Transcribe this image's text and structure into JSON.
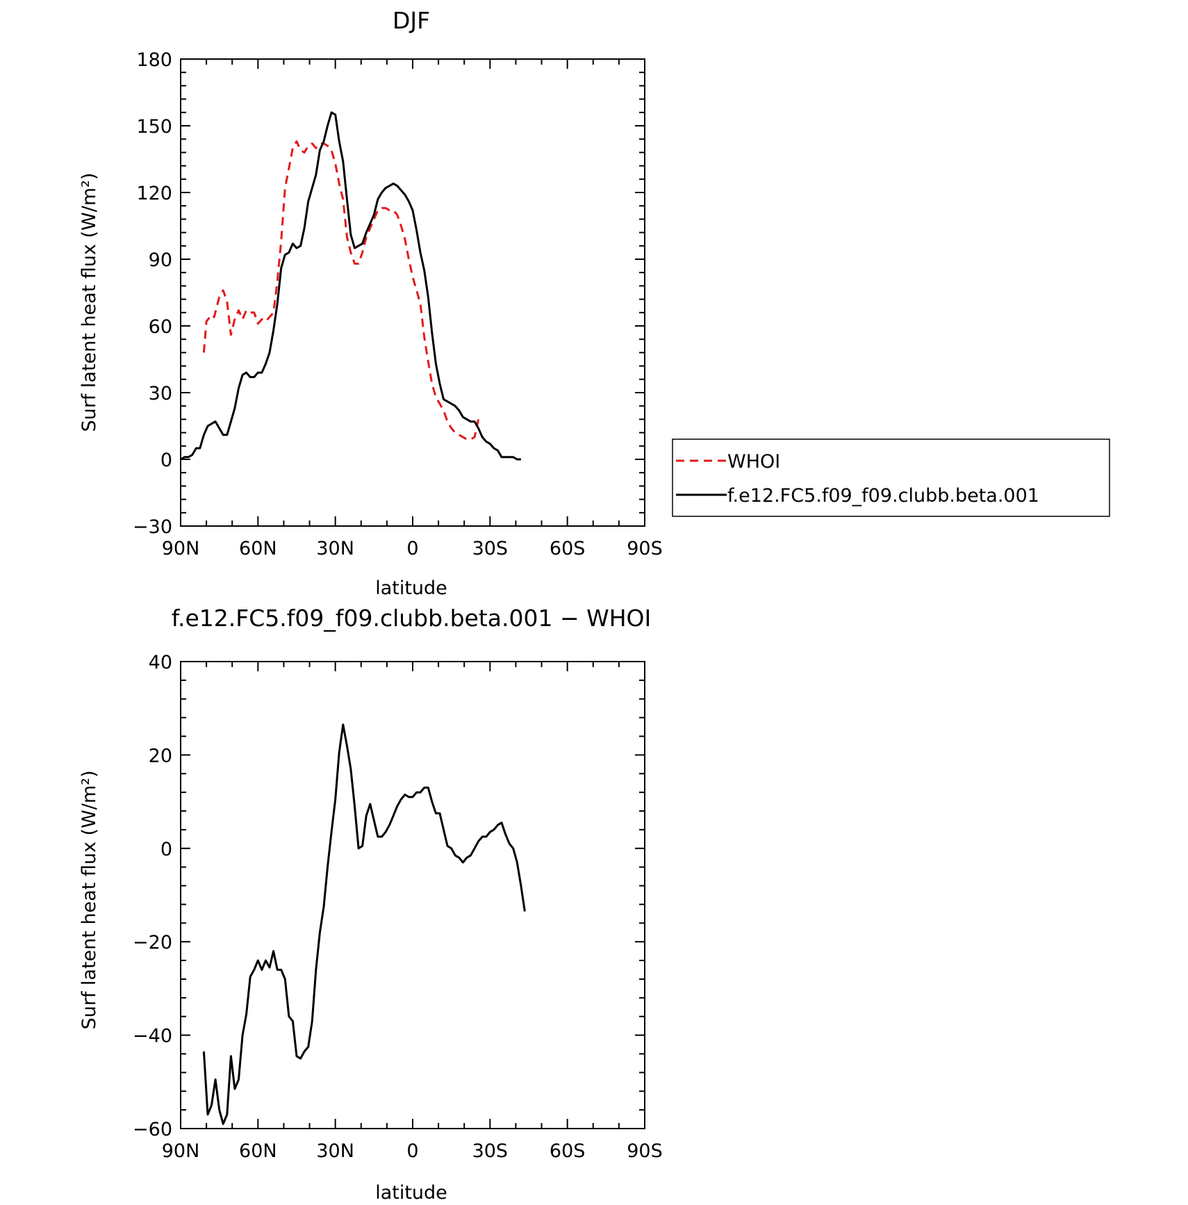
{
  "chart_data": [
    {
      "type": "line",
      "title": "DJF",
      "xlabel": "latitude",
      "ylabel": "Surf latent heat flux (W/m²)",
      "xlim": [
        -90,
        90
      ],
      "ylim": [
        -30,
        180
      ],
      "x_note": "positive = N, negative = S (displayed from 90N on left to 90S on right)",
      "xticks": [
        {
          "value": 90,
          "label": "90N"
        },
        {
          "value": 60,
          "label": "60N"
        },
        {
          "value": 30,
          "label": "30N"
        },
        {
          "value": 0,
          "label": "0"
        },
        {
          "value": -30,
          "label": "30S"
        },
        {
          "value": -60,
          "label": "60S"
        },
        {
          "value": -90,
          "label": "90S"
        }
      ],
      "yticks": [
        180,
        150,
        120,
        90,
        60,
        30,
        0,
        -30
      ],
      "ytick_labels": [
        "180",
        "150",
        "120",
        "90",
        "60",
        "30",
        "0",
        "−30"
      ],
      "grid": false,
      "legend_position": "right",
      "series": [
        {
          "name": "WHOI",
          "color": "#e41a1c",
          "dash": "dashed",
          "points": [
            [
              81,
              48
            ],
            [
              80,
              62
            ],
            [
              78,
              65
            ],
            [
              77,
              64
            ],
            [
              75,
              73
            ],
            [
              73.5,
              76
            ],
            [
              72,
              71
            ],
            [
              70.5,
              56
            ],
            [
              69,
              63
            ],
            [
              67.5,
              67
            ],
            [
              66,
              63
            ],
            [
              64.5,
              67
            ],
            [
              63,
              66
            ],
            [
              61.5,
              66
            ],
            [
              60,
              61
            ],
            [
              58.5,
              63
            ],
            [
              57,
              62
            ],
            [
              55.5,
              64
            ],
            [
              54,
              66
            ],
            [
              52.5,
              80
            ],
            [
              51,
              98
            ],
            [
              49.5,
              122
            ],
            [
              48,
              131
            ],
            [
              46.5,
              140
            ],
            [
              45,
              143
            ],
            [
              43.5,
              139
            ],
            [
              42,
              138
            ],
            [
              40.5,
              141
            ],
            [
              39,
              142
            ],
            [
              37.5,
              140
            ],
            [
              36,
              142
            ],
            [
              34.5,
              142
            ],
            [
              33,
              141
            ],
            [
              31.5,
              139
            ],
            [
              30,
              133
            ],
            [
              28.5,
              124
            ],
            [
              27,
              117
            ],
            [
              25.5,
              100
            ],
            [
              24,
              93
            ],
            [
              22.5,
              88
            ],
            [
              21,
              88
            ],
            [
              19.5,
              93
            ],
            [
              18,
              100
            ],
            [
              16.5,
              104
            ],
            [
              15,
              108
            ],
            [
              13.5,
              112
            ],
            [
              12,
              113
            ],
            [
              10.5,
              113
            ],
            [
              9,
              112
            ],
            [
              7.5,
              112
            ],
            [
              6,
              110
            ],
            [
              4.5,
              105
            ],
            [
              3,
              99
            ],
            [
              1.5,
              90
            ],
            [
              0,
              82
            ],
            [
              -1.5,
              76
            ],
            [
              -3,
              70
            ],
            [
              -4.5,
              55
            ],
            [
              -6,
              44
            ],
            [
              -7.5,
              34
            ],
            [
              -9,
              28
            ],
            [
              -10.5,
              25
            ],
            [
              -12,
              22
            ],
            [
              -13.5,
              17
            ],
            [
              -15,
              14
            ],
            [
              -16.5,
              12
            ],
            [
              -18,
              11
            ],
            [
              -19.5,
              10
            ],
            [
              -21,
              9
            ],
            [
              -22.5,
              9
            ],
            [
              -24,
              10
            ],
            [
              -25.5,
              18
            ]
          ]
        },
        {
          "name": "f.e12.FC5.f09_f09.clubb.beta.001",
          "color": "#000000",
          "dash": "solid",
          "points": [
            [
              90,
              0
            ],
            [
              88.5,
              1
            ],
            [
              87,
              1
            ],
            [
              85.5,
              2
            ],
            [
              84,
              5
            ],
            [
              82.5,
              5
            ],
            [
              81,
              11
            ],
            [
              79.5,
              15
            ],
            [
              78,
              16
            ],
            [
              76.5,
              17
            ],
            [
              75,
              14
            ],
            [
              73.5,
              11
            ],
            [
              72,
              11
            ],
            [
              70.5,
              17
            ],
            [
              69,
              23
            ],
            [
              67.5,
              32
            ],
            [
              66,
              38
            ],
            [
              64.5,
              39
            ],
            [
              63,
              37
            ],
            [
              61.5,
              37
            ],
            [
              60,
              39
            ],
            [
              58.5,
              39
            ],
            [
              57,
              43
            ],
            [
              55.5,
              48
            ],
            [
              54,
              58
            ],
            [
              52.5,
              70
            ],
            [
              51,
              86
            ],
            [
              49.5,
              92
            ],
            [
              48,
              93
            ],
            [
              46.5,
              97
            ],
            [
              45,
              95
            ],
            [
              43.5,
              96
            ],
            [
              42,
              104
            ],
            [
              40.5,
              116
            ],
            [
              39,
              122
            ],
            [
              37.5,
              128
            ],
            [
              36,
              139
            ],
            [
              34.5,
              143
            ],
            [
              33,
              150
            ],
            [
              31.5,
              156
            ],
            [
              30,
              155
            ],
            [
              28.5,
              143
            ],
            [
              27,
              134
            ],
            [
              25.5,
              117
            ],
            [
              24,
              101
            ],
            [
              22.5,
              95
            ],
            [
              21,
              96
            ],
            [
              19.5,
              97
            ],
            [
              18,
              102
            ],
            [
              16.5,
              106
            ],
            [
              15,
              110
            ],
            [
              13.5,
              117
            ],
            [
              12,
              120
            ],
            [
              10.5,
              122
            ],
            [
              9,
              123
            ],
            [
              7.5,
              124
            ],
            [
              6,
              123
            ],
            [
              4.5,
              121
            ],
            [
              3,
              119
            ],
            [
              1.5,
              116
            ],
            [
              0,
              112
            ],
            [
              -1.5,
              103
            ],
            [
              -3,
              93
            ],
            [
              -4.5,
              85
            ],
            [
              -6,
              73
            ],
            [
              -7.5,
              57
            ],
            [
              -9,
              43
            ],
            [
              -10.5,
              34
            ],
            [
              -12,
              27
            ],
            [
              -13.5,
              26
            ],
            [
              -15,
              25
            ],
            [
              -16.5,
              24
            ],
            [
              -18,
              22
            ],
            [
              -19.5,
              19
            ],
            [
              -21,
              18
            ],
            [
              -22.5,
              17
            ],
            [
              -24,
              17
            ],
            [
              -25.5,
              14
            ],
            [
              -27,
              10
            ],
            [
              -28.5,
              8
            ],
            [
              -30,
              7
            ],
            [
              -31.5,
              5
            ],
            [
              -33,
              4
            ],
            [
              -34.5,
              1
            ],
            [
              -36,
              1
            ],
            [
              -37.5,
              1
            ],
            [
              -39,
              1
            ],
            [
              -40.5,
              0
            ],
            [
              -42,
              0
            ]
          ]
        }
      ]
    },
    {
      "type": "line",
      "title": "f.e12.FC5.f09_f09.clubb.beta.001 − WHOI",
      "xlabel": "latitude",
      "ylabel": "Surf latent heat flux (W/m²)",
      "xlim": [
        -90,
        90
      ],
      "ylim": [
        -60,
        40
      ],
      "xticks": [
        {
          "value": 90,
          "label": "90N"
        },
        {
          "value": 60,
          "label": "60N"
        },
        {
          "value": 30,
          "label": "30N"
        },
        {
          "value": 0,
          "label": "0"
        },
        {
          "value": -30,
          "label": "30S"
        },
        {
          "value": -60,
          "label": "60S"
        },
        {
          "value": -90,
          "label": "90S"
        }
      ],
      "yticks": [
        40,
        20,
        0,
        -20,
        -40,
        -60
      ],
      "ytick_labels": [
        "40",
        "20",
        "0",
        "−20",
        "−40",
        "−60"
      ],
      "grid": false,
      "series": [
        {
          "name": "",
          "color": "#000000",
          "dash": "solid",
          "points": [
            [
              81,
              -43.5
            ],
            [
              79.5,
              -57
            ],
            [
              78,
              -55
            ],
            [
              76.5,
              -49.5
            ],
            [
              75,
              -56
            ],
            [
              73.5,
              -59
            ],
            [
              72,
              -57
            ],
            [
              70.5,
              -44.5
            ],
            [
              69,
              -51.5
            ],
            [
              67.5,
              -49.5
            ],
            [
              66,
              -40
            ],
            [
              64.5,
              -35.5
            ],
            [
              63,
              -27.5
            ],
            [
              61.5,
              -26
            ],
            [
              60,
              -24
            ],
            [
              58.5,
              -26
            ],
            [
              57,
              -24
            ],
            [
              55.5,
              -25.5
            ],
            [
              54,
              -22
            ],
            [
              52.5,
              -26
            ],
            [
              51,
              -26
            ],
            [
              49.5,
              -28
            ],
            [
              48,
              -36
            ],
            [
              46.5,
              -37
            ],
            [
              45,
              -44.5
            ],
            [
              43.5,
              -45
            ],
            [
              42,
              -43.5
            ],
            [
              40.5,
              -42.5
            ],
            [
              39,
              -37
            ],
            [
              37.5,
              -26
            ],
            [
              36,
              -18
            ],
            [
              34.5,
              -12.5
            ],
            [
              33,
              -4
            ],
            [
              31.5,
              3.5
            ],
            [
              30,
              10.5
            ],
            [
              28.5,
              20.5
            ],
            [
              27,
              26.5
            ],
            [
              25.5,
              22
            ],
            [
              24,
              17
            ],
            [
              22.5,
              9
            ],
            [
              21,
              0
            ],
            [
              19.5,
              0.5
            ],
            [
              18,
              7
            ],
            [
              16.5,
              9.5
            ],
            [
              15,
              6
            ],
            [
              13.5,
              2.5
            ],
            [
              12,
              2.5
            ],
            [
              10.5,
              3.5
            ],
            [
              9,
              5
            ],
            [
              7.5,
              7
            ],
            [
              6,
              9
            ],
            [
              4.5,
              10.5
            ],
            [
              3,
              11.5
            ],
            [
              1.5,
              11
            ],
            [
              0,
              11
            ],
            [
              -1.5,
              12
            ],
            [
              -3,
              12
            ],
            [
              -4.5,
              13
            ],
            [
              -6,
              13
            ],
            [
              -7.5,
              10
            ],
            [
              -9,
              7.5
            ],
            [
              -10.5,
              7.5
            ],
            [
              -12,
              4
            ],
            [
              -13.5,
              0.5
            ],
            [
              -15,
              0
            ],
            [
              -16.5,
              -1.5
            ],
            [
              -18,
              -2
            ],
            [
              -19.5,
              -3
            ],
            [
              -21,
              -2
            ],
            [
              -22.5,
              -1.5
            ],
            [
              -24,
              0
            ],
            [
              -25.5,
              1.5
            ],
            [
              -27,
              2.5
            ],
            [
              -28.5,
              2.5
            ],
            [
              -30,
              3.5
            ],
            [
              -31.5,
              4
            ],
            [
              -33,
              5
            ],
            [
              -34.5,
              5.5
            ],
            [
              -36,
              3
            ],
            [
              -37.5,
              1
            ],
            [
              -39,
              0
            ],
            [
              -40.5,
              -3
            ],
            [
              -42,
              -8
            ],
            [
              -43.5,
              -13.5
            ]
          ]
        }
      ]
    }
  ]
}
